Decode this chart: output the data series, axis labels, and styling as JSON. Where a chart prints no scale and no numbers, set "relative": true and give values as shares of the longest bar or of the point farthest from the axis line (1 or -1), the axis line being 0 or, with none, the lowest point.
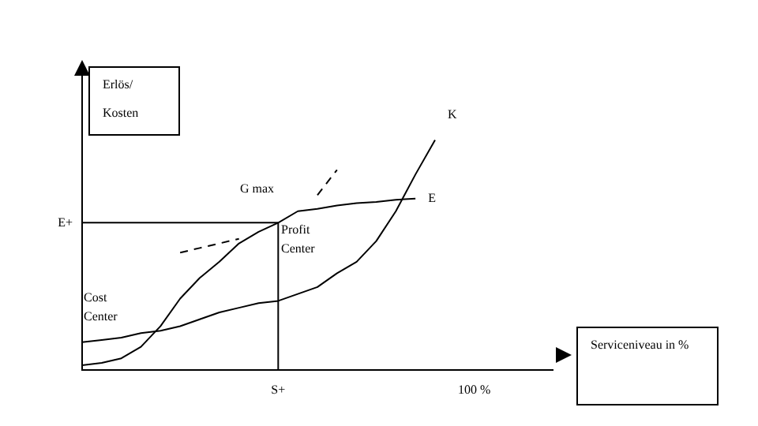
{
  "chart_data": {
    "type": "line",
    "relative": true,
    "ylabel": "Erlös/ Kosten",
    "xlabel": "Serviceniveau in %",
    "categories": [
      null,
      null,
      null,
      null,
      null,
      null,
      null,
      null,
      null,
      null,
      "S+",
      null,
      null,
      null,
      null,
      null,
      null,
      null,
      null,
      null,
      "100 %",
      null,
      null,
      null,
      null
    ],
    "series": [
      {
        "name": "E",
        "color": "#000000",
        "values": [
          0.02,
          0.03,
          0.05,
          0.1,
          0.19,
          0.31,
          0.4,
          0.47,
          0.55,
          0.6,
          0.64,
          0.69,
          0.7,
          0.715,
          0.725,
          0.73,
          0.74,
          0.745,
          null,
          null,
          null,
          null,
          null,
          null,
          null
        ]
      },
      {
        "name": "K",
        "color": "#000000",
        "values": [
          0.12,
          0.13,
          0.14,
          0.16,
          0.17,
          0.19,
          0.22,
          0.25,
          0.27,
          0.29,
          0.3,
          0.33,
          0.36,
          0.42,
          0.47,
          0.56,
          0.69,
          0.85,
          1.0,
          null,
          null,
          null,
          null,
          null,
          null
        ]
      },
      {
        "color": "#000000",
        "line_style": "dashed",
        "values": [
          null,
          null,
          null,
          null,
          null,
          0.51,
          0.53,
          0.55,
          0.57,
          null,
          null,
          null,
          0.76,
          0.87,
          null,
          null,
          null,
          null,
          null,
          null,
          null,
          null,
          null,
          null,
          null
        ]
      }
    ],
    "ref_lines": [
      {
        "axis": "y",
        "value": 0.64,
        "label": "E+"
      },
      {
        "axis": "x",
        "value": "S+",
        "label": null
      }
    ],
    "annotations": [
      "G max",
      "Profit Center",
      "Cost Center"
    ],
    "legend": false,
    "grid": false,
    "marker": "none"
  }
}
